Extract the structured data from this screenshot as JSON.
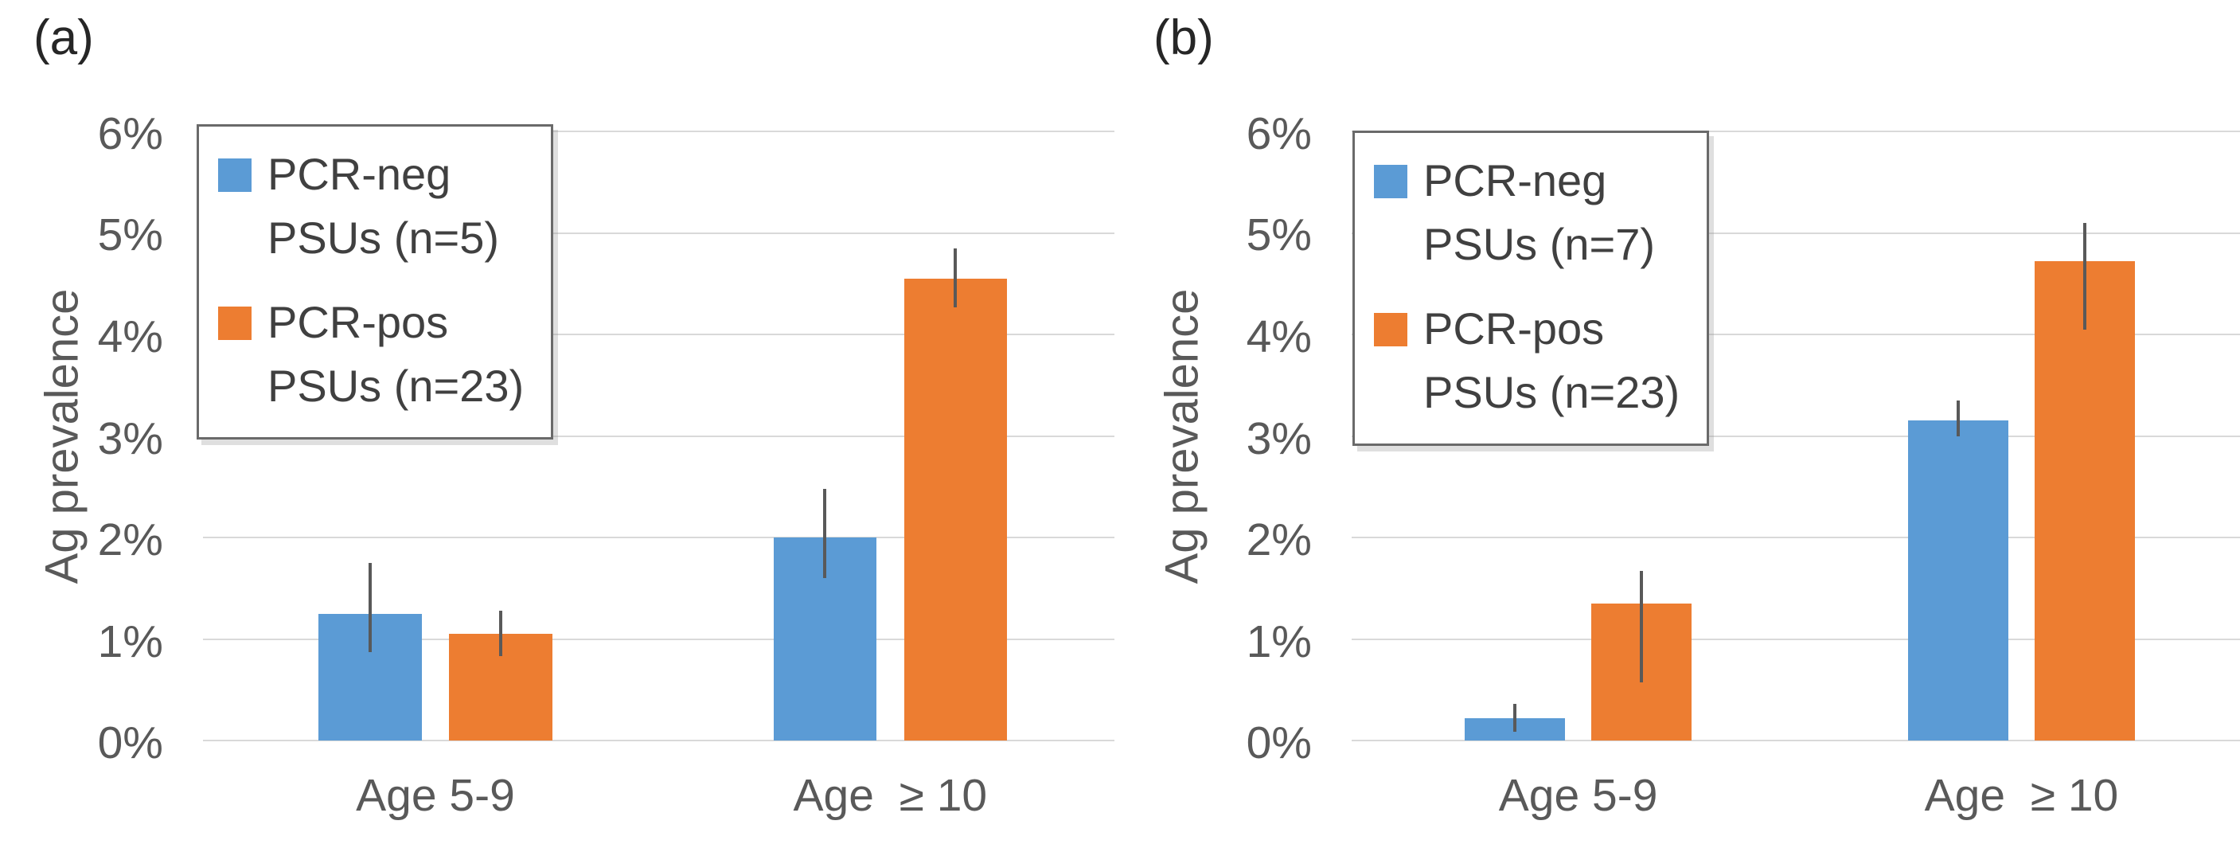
{
  "figure": {
    "background": "#ffffff"
  },
  "style": {
    "bar_blue": "#5B9BD5",
    "bar_orange": "#ED7D31",
    "gridline_color": "#D9D9D9",
    "error_bar_color": "#595959",
    "tick_text_color": "#595959",
    "category_text_color": "#595959",
    "legend_text_color": "#404040",
    "legend_border_color": "#6A6A6A",
    "panel_label_color": "#262626"
  },
  "chart_data": [
    {
      "type": "bar",
      "panel_label": "(a)",
      "ylabel": "Ag prevalence",
      "xlabel": "",
      "ylim": [
        0,
        6
      ],
      "yticks": [
        "0%",
        "1%",
        "2%",
        "3%",
        "4%",
        "5%",
        "6%"
      ],
      "grid": true,
      "legend_position": "top-left",
      "categories": [
        "Age 5-9",
        "Age  ≥ 10"
      ],
      "series": [
        {
          "name": "PCR-neg PSUs (n=5)",
          "legend_lines": [
            "PCR-neg",
            "PSUs (n=5)"
          ],
          "color": "#5B9BD5",
          "values": [
            1.25,
            2.0
          ],
          "error_low": [
            0.87,
            1.6
          ],
          "error_high": [
            1.75,
            2.48
          ]
        },
        {
          "name": "PCR-pos PSUs (n=23)",
          "legend_lines": [
            "PCR-pos",
            "PSUs (n=23)"
          ],
          "color": "#ED7D31",
          "values": [
            1.05,
            4.55
          ],
          "error_low": [
            0.83,
            4.27
          ],
          "error_high": [
            1.28,
            4.85
          ]
        }
      ]
    },
    {
      "type": "bar",
      "panel_label": "(b)",
      "ylabel": "Ag prevalence",
      "xlabel": "",
      "ylim": [
        0,
        6
      ],
      "yticks": [
        "0%",
        "1%",
        "2%",
        "3%",
        "4%",
        "5%",
        "6%"
      ],
      "grid": true,
      "legend_position": "top-left",
      "categories": [
        "Age 5-9",
        "Age  ≥ 10"
      ],
      "series": [
        {
          "name": "PCR-neg PSUs (n=7)",
          "legend_lines": [
            "PCR-neg",
            "PSUs (n=7)"
          ],
          "color": "#5B9BD5",
          "values": [
            0.22,
            3.15
          ],
          "error_low": [
            0.09,
            3.0
          ],
          "error_high": [
            0.36,
            3.35
          ]
        },
        {
          "name": "PCR-pos PSUs (n=23)",
          "legend_lines": [
            "PCR-pos",
            "PSUs (n=23)"
          ],
          "color": "#ED7D31",
          "values": [
            1.35,
            4.72
          ],
          "error_low": [
            0.57,
            4.05
          ],
          "error_high": [
            1.67,
            5.1
          ]
        }
      ]
    }
  ]
}
